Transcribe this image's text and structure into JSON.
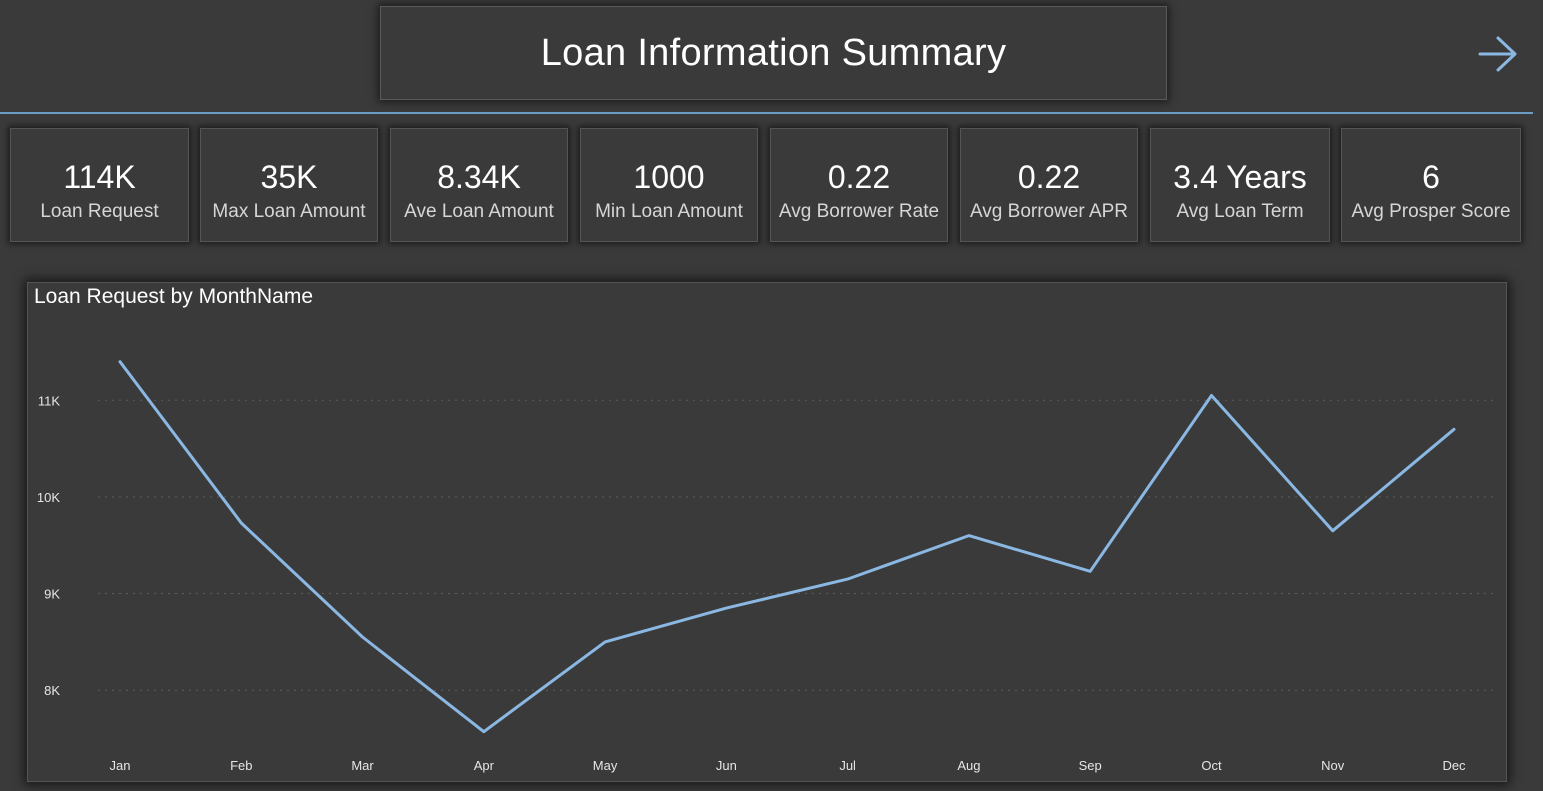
{
  "header": {
    "title": "Loan Information Summary",
    "nav_icon": "arrow-right-icon"
  },
  "accent_color": "#8bb8e3",
  "divider_color": "#6c9bc6",
  "cards": [
    {
      "value": "114K",
      "label": "Loan Request"
    },
    {
      "value": "35K",
      "label": "Max Loan Amount"
    },
    {
      "value": "8.34K",
      "label": "Ave Loan Amount"
    },
    {
      "value": "1000",
      "label": "Min Loan Amount"
    },
    {
      "value": "0.22",
      "label": "Avg Borrower Rate"
    },
    {
      "value": "0.22",
      "label": "Avg Borrower APR"
    },
    {
      "value": "3.4 Years",
      "label": "Avg Loan Term"
    },
    {
      "value": "6",
      "label": "Avg Prosper Score"
    }
  ],
  "chart_data": {
    "type": "line",
    "title": "Loan Request by MonthName",
    "xlabel": "",
    "ylabel": "",
    "categories": [
      "Jan",
      "Feb",
      "Mar",
      "Apr",
      "May",
      "Jun",
      "Jul",
      "Aug",
      "Sep",
      "Oct",
      "Nov",
      "Dec"
    ],
    "series": [
      {
        "name": "Loan Request",
        "values": [
          11400,
          9730,
          8550,
          7570,
          8500,
          8850,
          9150,
          9600,
          9230,
          11050,
          9650,
          10700
        ]
      }
    ],
    "yticks": [
      8000,
      9000,
      10000,
      11000
    ],
    "ytick_labels": [
      "8K",
      "9K",
      "10K",
      "11K"
    ],
    "ylim": [
      7350,
      11800
    ],
    "grid": true,
    "line_color": "#8bb8e3"
  }
}
